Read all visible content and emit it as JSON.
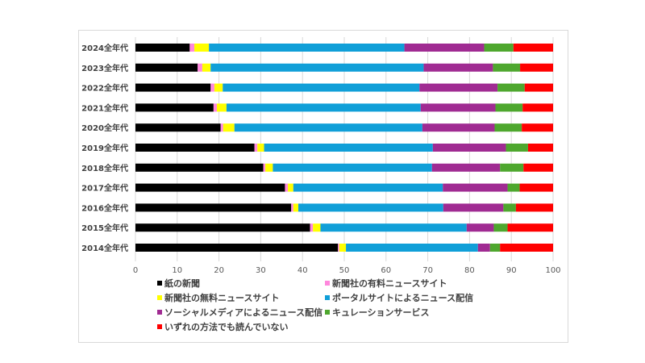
{
  "chart_data": {
    "type": "bar",
    "orientation": "horizontal",
    "stacked": true,
    "categories": [
      "2024全年代",
      "2023全年代",
      "2022全年代",
      "2021全年代",
      "2020全年代",
      "2019全年代",
      "2018全年代",
      "2017全年代",
      "2016全年代",
      "2015全年代",
      "2014全年代"
    ],
    "xlim": [
      0,
      100
    ],
    "xticks": [
      "0",
      "10",
      "20",
      "30",
      "40",
      "50",
      "60",
      "70",
      "80",
      "90",
      "100"
    ],
    "grid": true,
    "legend_position": "bottom",
    "series": [
      {
        "name": "紙の新聞",
        "color": "#000000",
        "values": [
          13.0,
          14.9,
          18.0,
          18.7,
          20.4,
          28.5,
          30.6,
          35.8,
          37.3,
          41.8,
          48.5
        ]
      },
      {
        "name": "新聞社の有料ニュースサイト",
        "color": "#ff88dd",
        "values": [
          1.1,
          1.1,
          0.9,
          0.8,
          0.6,
          0.7,
          0.5,
          0.7,
          0.5,
          0.7,
          0.3
        ]
      },
      {
        "name": "新聞社の無料ニュースサイト",
        "color": "#ffff00",
        "values": [
          3.5,
          2.0,
          2.0,
          2.3,
          2.7,
          1.6,
          1.8,
          1.3,
          1.2,
          1.8,
          1.6
        ]
      },
      {
        "name": "ポータルサイトによるニュース配信",
        "color": "#109fd8",
        "values": [
          46.8,
          51.0,
          47.1,
          46.5,
          45.0,
          40.4,
          38.1,
          35.8,
          34.7,
          35.0,
          31.6
        ]
      },
      {
        "name": "ソーシャルメディアによるニュース配信",
        "color": "#a02b92",
        "values": [
          19.1,
          16.6,
          18.7,
          17.9,
          17.3,
          17.5,
          16.3,
          15.5,
          14.4,
          6.5,
          2.9
        ]
      },
      {
        "name": "キュレーションサービス",
        "color": "#4ea72e",
        "values": [
          7.0,
          6.5,
          6.5,
          6.5,
          6.5,
          5.3,
          5.6,
          2.9,
          3.0,
          3.3,
          2.4
        ]
      },
      {
        "name": "いずれの方法でも読んでいない",
        "color": "#ff0000",
        "values": [
          9.5,
          7.9,
          6.8,
          7.3,
          7.5,
          6.0,
          7.1,
          8.0,
          8.9,
          10.9,
          12.7
        ]
      }
    ]
  }
}
